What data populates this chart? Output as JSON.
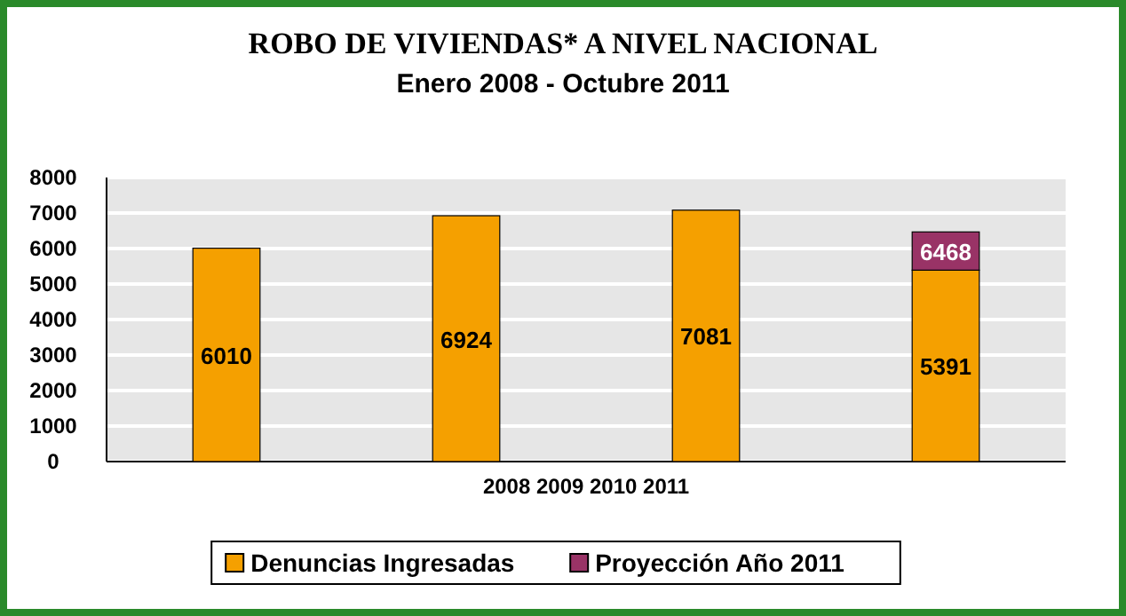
{
  "chart_data": {
    "type": "bar",
    "title": "ROBO DE VIVIENDAS* A NIVEL NACIONAL",
    "subtitle": "Enero 2008 - Octubre 2011",
    "xlabel": "2008 2009 2010 2011",
    "categories": [
      null,
      null,
      null,
      null
    ],
    "stacked": true,
    "series": [
      {
        "name": "Denuncias Ingresadas",
        "color": "#f5a000",
        "values": [
          6010,
          6924,
          7081,
          5391
        ],
        "value_labels": [
          "6010",
          "6924",
          "7081",
          "5391"
        ]
      },
      {
        "name": "Proyección Año 2011",
        "color": "#993366",
        "values": [
          null,
          null,
          null,
          1077
        ]
      }
    ],
    "totals": [
      null,
      null,
      null,
      "6468"
    ],
    "ylim": [
      0,
      8000
    ],
    "yticks": [
      0,
      1000,
      2000,
      3000,
      4000,
      5000,
      6000,
      7000,
      8000
    ],
    "grid": "y",
    "legend": "bottom"
  }
}
